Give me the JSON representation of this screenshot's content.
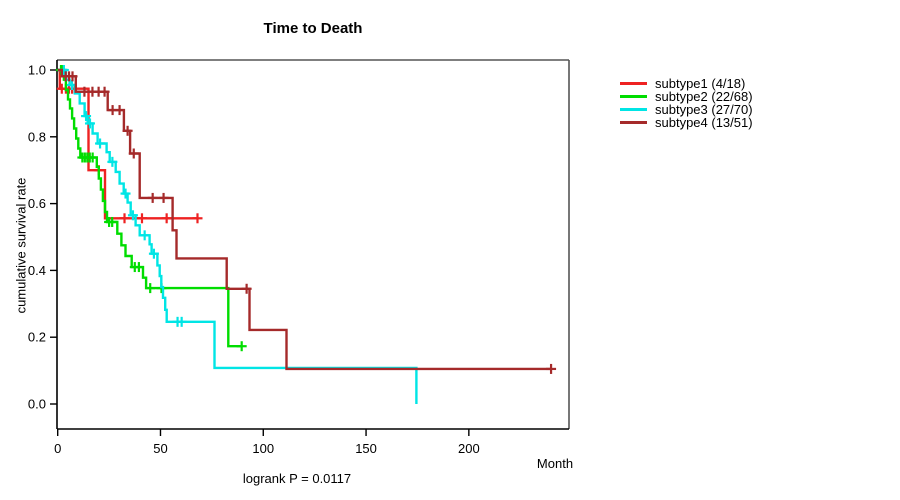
{
  "chart_data": {
    "type": "line",
    "variant": "kaplan-meier-step",
    "title": "Time to Death",
    "xlabel": "Month",
    "ylabel": "cumulative survival rate",
    "annotation": "logrank P = 0.0117",
    "logrank_p": "0.0117",
    "xlim": [
      0,
      248
    ],
    "ylim": [
      0.0,
      1.0
    ],
    "x_ticks": [
      0,
      50,
      100,
      150,
      200
    ],
    "y_ticks": [
      0.0,
      0.2,
      0.4,
      0.6,
      0.8,
      1.0
    ],
    "grid": false,
    "legend_position": "right-outside",
    "series": [
      {
        "name": "subtype1 (4/18)",
        "events": 4,
        "total": 18,
        "color": "#EE2222",
        "steps": [
          [
            0,
            1.0
          ],
          [
            1,
            0.944
          ],
          [
            15,
            0.7
          ],
          [
            23,
            0.556
          ]
        ],
        "censors": [
          [
            2,
            0.944
          ],
          [
            4,
            0.944
          ],
          [
            5.5,
            0.944
          ],
          [
            7,
            0.944
          ],
          [
            20,
            0.7
          ],
          [
            32.5,
            0.556
          ],
          [
            41,
            0.556
          ],
          [
            53,
            0.556
          ],
          [
            68,
            0.556
          ]
        ],
        "end_month": 68
      },
      {
        "name": "subtype2 (22/68)",
        "events": 22,
        "total": 68,
        "color": "#00DD00",
        "steps": [
          [
            0,
            1.0
          ],
          [
            3,
            0.971
          ],
          [
            4,
            0.94
          ],
          [
            5,
            0.912
          ],
          [
            6,
            0.885
          ],
          [
            7,
            0.855
          ],
          [
            8,
            0.825
          ],
          [
            9,
            0.795
          ],
          [
            10,
            0.765
          ],
          [
            11,
            0.738
          ],
          [
            19,
            0.71
          ],
          [
            20,
            0.675
          ],
          [
            21,
            0.642
          ],
          [
            22,
            0.608
          ],
          [
            23,
            0.575
          ],
          [
            24,
            0.545
          ],
          [
            29,
            0.51
          ],
          [
            31,
            0.475
          ],
          [
            33,
            0.443
          ],
          [
            36,
            0.41
          ],
          [
            41.5,
            0.378
          ],
          [
            43,
            0.347
          ],
          [
            83,
            0.173
          ]
        ],
        "censors": [
          [
            1.6,
            1.0
          ],
          [
            2.4,
            1.0
          ],
          [
            12,
            0.738
          ],
          [
            13.2,
            0.738
          ],
          [
            14.4,
            0.738
          ],
          [
            15.6,
            0.738
          ],
          [
            17,
            0.738
          ],
          [
            25,
            0.545
          ],
          [
            26.5,
            0.545
          ],
          [
            37.5,
            0.41
          ],
          [
            39.5,
            0.41
          ],
          [
            45,
            0.347
          ],
          [
            50.5,
            0.347
          ],
          [
            89.5,
            0.173
          ]
        ],
        "end_month": 89.5
      },
      {
        "name": "subtype3 (27/70)",
        "events": 27,
        "total": 70,
        "color": "#00E5E5",
        "steps": [
          [
            0,
            1.0
          ],
          [
            4,
            0.971
          ],
          [
            5.8,
            0.955
          ],
          [
            8.3,
            0.93
          ],
          [
            10.7,
            0.9
          ],
          [
            13.1,
            0.862
          ],
          [
            14.6,
            0.84
          ],
          [
            17,
            0.81
          ],
          [
            19.4,
            0.78
          ],
          [
            23.8,
            0.754
          ],
          [
            25.3,
            0.725
          ],
          [
            28.2,
            0.695
          ],
          [
            30.1,
            0.66
          ],
          [
            32.1,
            0.63
          ],
          [
            34,
            0.603
          ],
          [
            35.5,
            0.565
          ],
          [
            37.9,
            0.535
          ],
          [
            39.9,
            0.505
          ],
          [
            44.7,
            0.478
          ],
          [
            45.7,
            0.45
          ],
          [
            48.5,
            0.415
          ],
          [
            49.6,
            0.383
          ],
          [
            50.4,
            0.35
          ],
          [
            51.2,
            0.318
          ],
          [
            52.3,
            0.282
          ],
          [
            53,
            0.246
          ],
          [
            76.3,
            0.108
          ],
          [
            174.5,
            0.0
          ]
        ],
        "censors": [
          [
            3,
            1.0
          ],
          [
            6.9,
            0.955
          ],
          [
            13.8,
            0.862
          ],
          [
            15.7,
            0.84
          ],
          [
            20.6,
            0.78
          ],
          [
            26.6,
            0.725
          ],
          [
            33,
            0.63
          ],
          [
            36.6,
            0.565
          ],
          [
            42.3,
            0.505
          ],
          [
            46.8,
            0.45
          ],
          [
            58.3,
            0.246
          ],
          [
            60.3,
            0.246
          ]
        ],
        "end_month": 174.5
      },
      {
        "name": "subtype4 (13/51)",
        "events": 13,
        "total": 51,
        "color": "#A52A2A",
        "steps": [
          [
            0,
            1.0
          ],
          [
            2,
            0.981
          ],
          [
            8.8,
            0.935
          ],
          [
            24.3,
            0.88
          ],
          [
            32.2,
            0.818
          ],
          [
            35.2,
            0.75
          ],
          [
            39.9,
            0.617
          ],
          [
            55.9,
            0.52
          ],
          [
            57.8,
            0.436
          ],
          [
            82.2,
            0.345
          ],
          [
            93.3,
            0.222
          ],
          [
            111.3,
            0.105
          ]
        ],
        "censors": [
          [
            3.9,
            0.981
          ],
          [
            5.5,
            0.981
          ],
          [
            7.2,
            0.981
          ],
          [
            13,
            0.935
          ],
          [
            16.9,
            0.935
          ],
          [
            19.9,
            0.935
          ],
          [
            22.8,
            0.935
          ],
          [
            26.7,
            0.88
          ],
          [
            30.1,
            0.88
          ],
          [
            34,
            0.818
          ],
          [
            37,
            0.75
          ],
          [
            46.2,
            0.617
          ],
          [
            51.5,
            0.617
          ],
          [
            91.9,
            0.345
          ],
          [
            240,
            0.105
          ]
        ],
        "end_month": 240
      }
    ]
  }
}
